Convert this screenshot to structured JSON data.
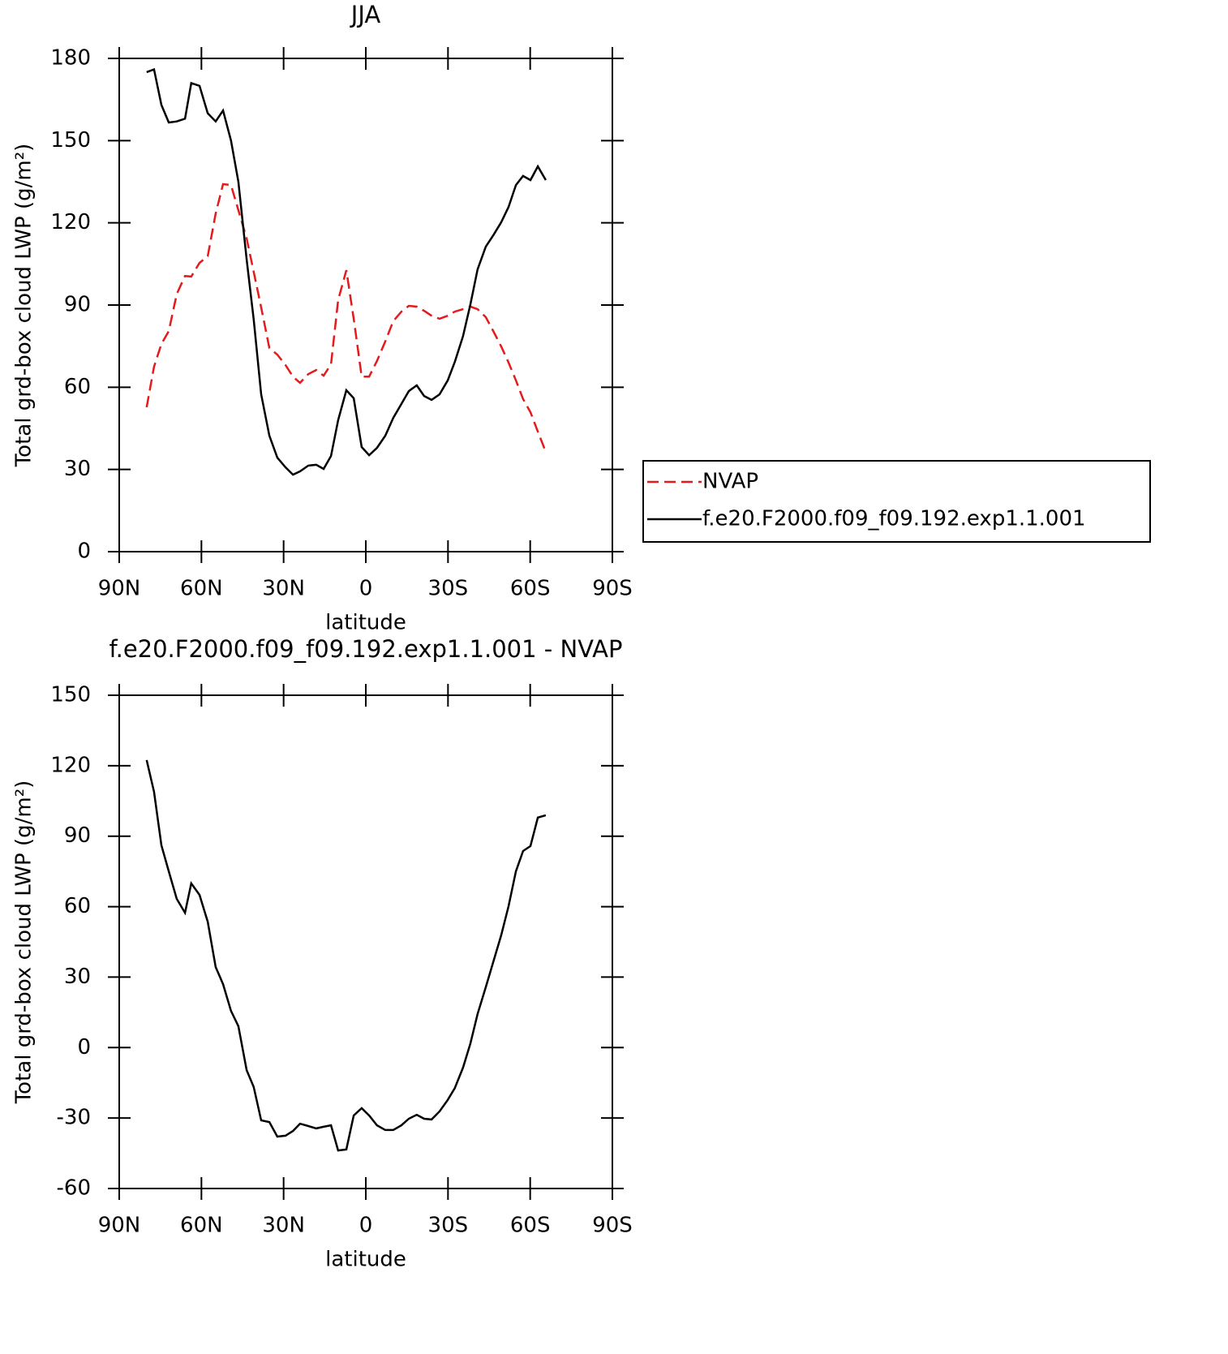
{
  "chart_data": [
    {
      "type": "line",
      "title": "JJA",
      "xlabel": "latitude",
      "ylabel": "Total grd-box cloud LWP (g/m²)",
      "x": [
        80,
        77.3,
        74.6,
        71.9,
        69,
        66,
        63.7,
        60.7,
        57.7,
        54.8,
        52.1,
        49.2,
        46.5,
        43.5,
        40.9,
        38.2,
        35.2,
        32.3,
        29.3,
        26.6,
        24,
        21,
        18.1,
        15.4,
        12.7,
        10.1,
        7.1,
        4.4,
        1.5,
        -1.2,
        -4.1,
        -7.1,
        -10,
        -13,
        -15.7,
        -18.6,
        -21.3,
        -24,
        -26.9,
        -29.9,
        -32.5,
        -35.5,
        -38.2,
        -40.8,
        -43.8,
        -46.7,
        -49.4,
        -52.1,
        -54.8,
        -57.4,
        -60.1,
        -62.8,
        -65.7
      ],
      "series": [
        {
          "name": "NVAP",
          "color": "#e41a1c",
          "linestyle": "dashed",
          "values": [
            52.7,
            67.5,
            75.8,
            80.5,
            94,
            100.6,
            100.4,
            105.4,
            107.8,
            123.4,
            134.1,
            133.8,
            124.6,
            114.3,
            102.1,
            89.1,
            74.3,
            71.9,
            68.1,
            63.9,
            61.6,
            64.8,
            66.3,
            64.2,
            68.4,
            91.8,
            102.7,
            85,
            63.9,
            63.9,
            69.6,
            76.7,
            84.1,
            87.6,
            89.7,
            89.4,
            87.9,
            86.1,
            85,
            86.1,
            87.6,
            88.5,
            89.4,
            88.5,
            85.6,
            80.2,
            74.9,
            69,
            62.5,
            55.7,
            50.9,
            43.8,
            36.4
          ]
        },
        {
          "name": "f.e20.F2000.f09_f09.192.exp1.1.001",
          "color": "#000000",
          "linestyle": "solid",
          "values": [
            175,
            176,
            163,
            156.6,
            157,
            158,
            171,
            170,
            160,
            157,
            161,
            150,
            135,
            106.6,
            84.7,
            57.4,
            42.3,
            34.3,
            30.8,
            28.1,
            29.3,
            31.4,
            31.7,
            30.2,
            34.9,
            48,
            58.9,
            56,
            38.2,
            35.2,
            37.9,
            42.3,
            48.8,
            53.9,
            58.6,
            60.7,
            56.8,
            55.4,
            57.4,
            62.5,
            69.3,
            78.7,
            90.3,
            103,
            111.3,
            115.7,
            120.2,
            125.8,
            133.8,
            137.1,
            135.6,
            140.6,
            135.6
          ]
        }
      ],
      "xlim": [
        90,
        -90
      ],
      "xticks": [
        {
          "value": 90,
          "label": "90N"
        },
        {
          "value": 60,
          "label": "60N"
        },
        {
          "value": 30,
          "label": "30N"
        },
        0,
        {
          "value": -30,
          "label": "30S"
        },
        {
          "value": -60,
          "label": "60S"
        },
        {
          "value": -90,
          "label": "90S"
        }
      ],
      "ylim": [
        0,
        180
      ],
      "yticks": [
        0,
        30,
        60,
        90,
        120,
        150,
        180
      ],
      "legend": "right"
    },
    {
      "type": "line",
      "title": "f.e20.F2000.f09_f09.192.exp1.1.001 - NVAP",
      "xlabel": "latitude",
      "ylabel": "Total grd-box cloud LWP (g/m²)",
      "x": [
        80,
        77.3,
        74.6,
        71.9,
        69,
        66,
        63.7,
        60.7,
        57.7,
        54.8,
        52.1,
        49.2,
        46.5,
        43.5,
        40.9,
        38.2,
        35.2,
        32.3,
        29.3,
        26.6,
        24,
        21,
        18.1,
        15.4,
        12.7,
        10.1,
        7.1,
        4.4,
        1.5,
        -1.2,
        -4.1,
        -7.1,
        -10,
        -13,
        -15.7,
        -18.6,
        -21.3,
        -24,
        -26.9,
        -29.9,
        -32.5,
        -35.5,
        -38.2,
        -40.8,
        -43.8,
        -46.7,
        -49.4,
        -52.1,
        -54.8,
        -57.4,
        -60.1,
        -62.8,
        -65.7
      ],
      "series": [
        {
          "color": "#000000",
          "linestyle": "solid",
          "values": [
            122.4,
            108.9,
            86.1,
            75,
            63.3,
            57.4,
            69.9,
            65,
            53.6,
            34.3,
            27,
            15.6,
            9.1,
            -9.6,
            -16.8,
            -31,
            -31.7,
            -37.9,
            -37.5,
            -35.5,
            -32.4,
            -33.4,
            -34.4,
            -33.7,
            -33.1,
            -43.8,
            -43.4,
            -28.9,
            -25.8,
            -28.9,
            -33.1,
            -35.1,
            -35.1,
            -33.1,
            -30.3,
            -28.6,
            -30.3,
            -30.6,
            -27.2,
            -22.3,
            -17.2,
            -8.5,
            1.8,
            14.3,
            25.7,
            37.1,
            47.8,
            60.2,
            75.1,
            83.7,
            85.8,
            97.9,
            98.9
          ]
        }
      ],
      "xlim": [
        90,
        -90
      ],
      "xticks": [
        {
          "value": 90,
          "label": "90N"
        },
        {
          "value": 60,
          "label": "60N"
        },
        {
          "value": 30,
          "label": "30N"
        },
        0,
        {
          "value": -30,
          "label": "30S"
        },
        {
          "value": -60,
          "label": "60S"
        },
        {
          "value": -90,
          "label": "90S"
        }
      ],
      "ylim": [
        -60,
        150
      ],
      "yticks": [
        -60,
        -30,
        0,
        30,
        60,
        90,
        120,
        150
      ]
    }
  ]
}
